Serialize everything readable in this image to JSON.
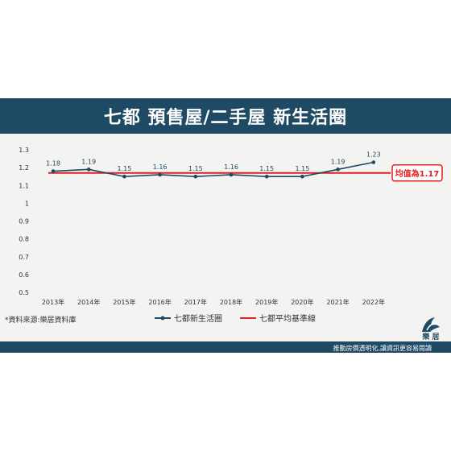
{
  "header": {
    "title": "七都  預售屋/二手屋  新生活圈"
  },
  "source_note": "*資料來源:樂居資料庫",
  "footer": {
    "slogan": "推動房價透明化,讓資訊更容易閱讀",
    "logo_text": "樂 居"
  },
  "colors": {
    "series": "#1e4a63",
    "average": "#e02020",
    "header": "#1e4a63"
  },
  "chart_data": {
    "type": "line",
    "categories": [
      "2013年",
      "2014年",
      "2015年",
      "2016年",
      "2017年",
      "2018年",
      "2019年",
      "2020年",
      "2021年",
      "2022年"
    ],
    "series": [
      {
        "name": "七都新生活圈",
        "values": [
          1.18,
          1.19,
          1.15,
          1.16,
          1.15,
          1.16,
          1.15,
          1.15,
          1.19,
          1.23
        ]
      }
    ],
    "reference_line": {
      "name": "七都平均基準線",
      "value": 1.17,
      "label": "均值為1.17"
    },
    "ylim": [
      0.5,
      1.3
    ],
    "yticks": [
      "0.5",
      "0.6",
      "0.7",
      "0.8",
      "0.9",
      "1",
      "1.1",
      "1.2",
      "1.3"
    ],
    "legend_position": "bottom",
    "grid": false
  }
}
